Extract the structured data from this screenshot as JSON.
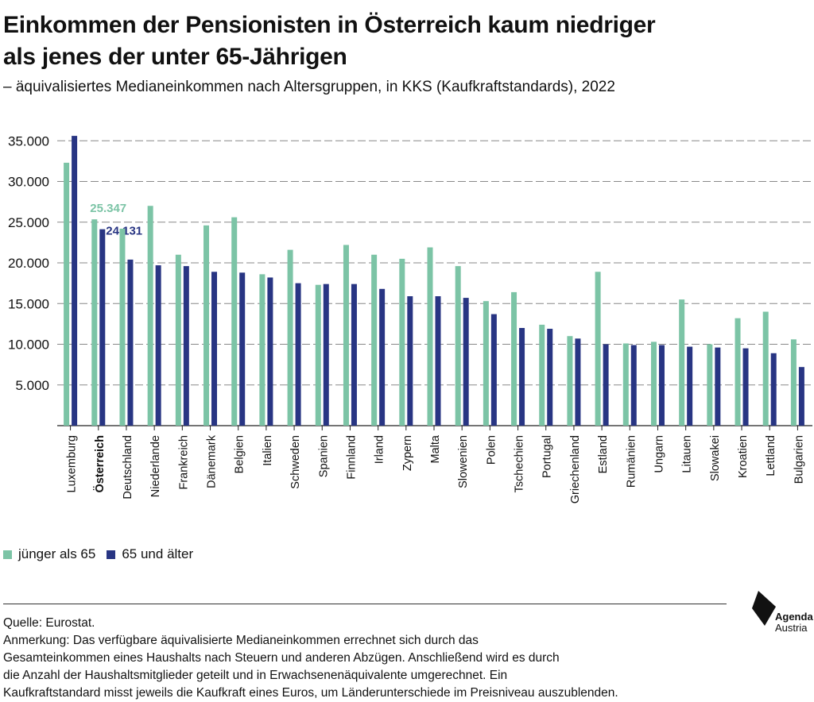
{
  "title_line1": "Einkommen der Pensionisten in Österreich kaum niedriger",
  "title_line2": "als jenes der unter 65-Jährigen",
  "subtitle": "– äquivalisiertes Medianeinkommen nach Altersgruppen, in KKS (Kaufkraftstandards), 2022",
  "colors": {
    "young": "#7cc4a6",
    "old": "#283583",
    "grid": "#888888",
    "text": "#111111"
  },
  "chart_data": {
    "type": "bar",
    "categories": [
      "Luxemburg",
      "Österreich",
      "Deutschland",
      "Niederlande",
      "Frankreich",
      "Dänemark",
      "Belgien",
      "Italien",
      "Schweden",
      "Spanien",
      "Finnland",
      "Irland",
      "Zypern",
      "Malta",
      "Slowenien",
      "Polen",
      "Tschechien",
      "Portugal",
      "Griechenland",
      "Estland",
      "Rumänien",
      "Ungarn",
      "Litauen",
      "Slowakei",
      "Kroatien",
      "Lettland",
      "Bulgarien"
    ],
    "highlight_category": "Österreich",
    "series": [
      {
        "name": "jünger als 65",
        "values": [
          32300,
          25347,
          24200,
          27000,
          21000,
          24600,
          25600,
          18600,
          21600,
          17300,
          22200,
          21000,
          20500,
          21900,
          19600,
          15300,
          16400,
          12400,
          11000,
          18900,
          10100,
          10300,
          15500,
          10000,
          13200,
          14000,
          10600
        ]
      },
      {
        "name": "65 und älter",
        "values": [
          35600,
          24131,
          20400,
          19700,
          19600,
          18900,
          18800,
          18200,
          17500,
          17400,
          17400,
          16800,
          15900,
          15900,
          15700,
          13700,
          12000,
          11900,
          10700,
          10000,
          9900,
          9900,
          9700,
          9600,
          9500,
          8900,
          7200
        ]
      }
    ],
    "data_labels": {
      "young": "25.347",
      "old": "24.131"
    },
    "yticks": [
      "5.000",
      "10.000",
      "15.000",
      "20.000",
      "25.000",
      "30.000",
      "35.000"
    ],
    "ylim": [
      0,
      37000
    ],
    "grid": true,
    "legend_position": "bottom-left"
  },
  "footnote": {
    "source": "Quelle: Eurostat.",
    "note_line1": "Anmerkung: Das verfügbare äquivalisierte Medianeinkommen errechnet sich durch das",
    "note_line2": "Gesamteinkommen eines Haushalts nach Steuern und anderen Abzügen. Anschließend wird es durch",
    "note_line3": "die Anzahl der Haushaltsmitglieder geteilt und in Erwachsenenäquivalente umgerechnet. Ein",
    "note_line4": "Kaufkraftstandard misst jeweils die Kaufkraft eines Euros, um Länderunterschiede im Preisniveau auszublenden."
  },
  "logo": {
    "line1": "Agenda",
    "line2": "Austria"
  }
}
